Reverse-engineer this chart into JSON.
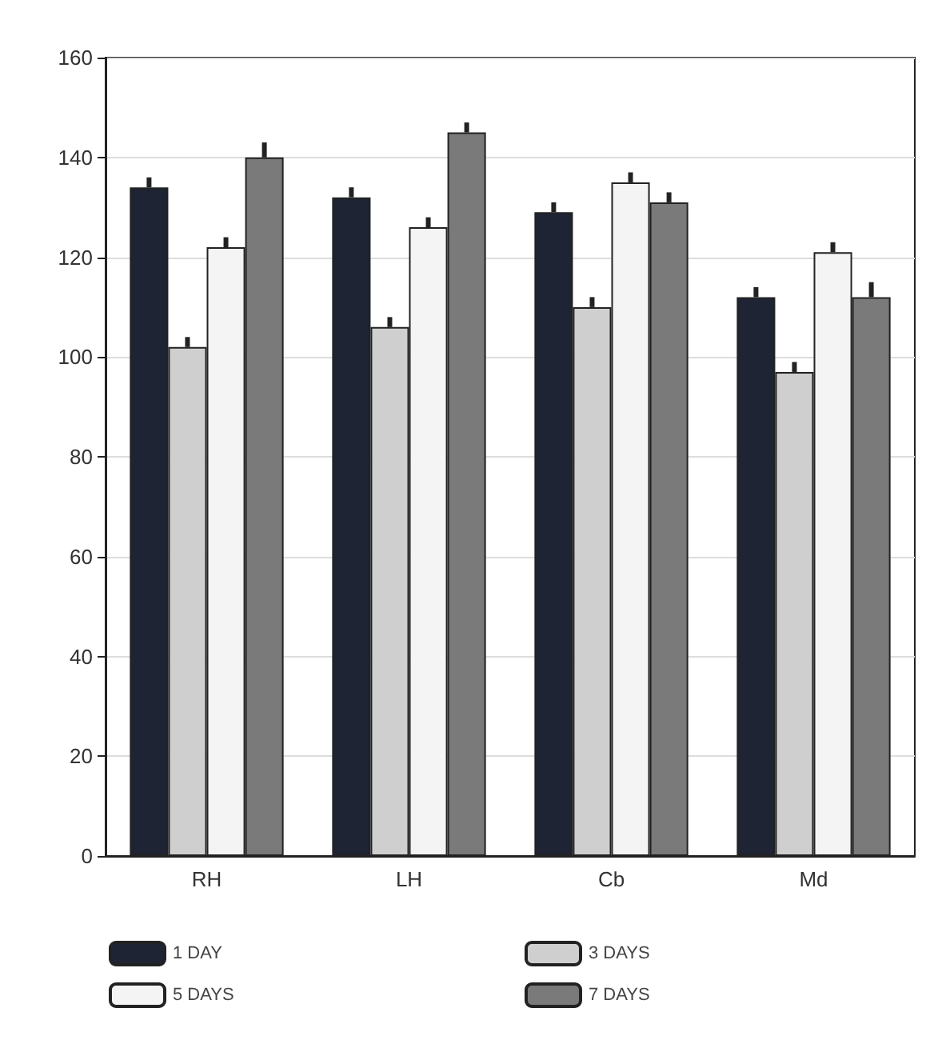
{
  "chart_data": {
    "type": "bar",
    "categories": [
      "RH",
      "LH",
      "Cb",
      "Md"
    ],
    "series": [
      {
        "name": "1 DAY",
        "color": "#1e2433",
        "values": [
          134,
          132,
          129,
          112
        ],
        "errors": [
          2,
          2,
          2,
          2
        ]
      },
      {
        "name": "3 DAYS",
        "color": "#cfcfcf",
        "values": [
          102,
          106,
          110,
          97
        ],
        "errors": [
          2,
          2,
          2,
          2
        ]
      },
      {
        "name": "5 DAYS",
        "color": "#f4f4f4",
        "values": [
          122,
          126,
          135,
          121
        ],
        "errors": [
          2,
          2,
          2,
          2
        ]
      },
      {
        "name": "7 DAYS",
        "color": "#7a7a7a",
        "values": [
          140,
          145,
          131,
          112
        ],
        "errors": [
          3,
          2,
          2,
          3
        ]
      }
    ],
    "ylim": [
      0,
      160
    ],
    "yticks": [
      0,
      20,
      40,
      60,
      80,
      100,
      120,
      140,
      160
    ],
    "grid": "y",
    "legend": "bottom"
  }
}
